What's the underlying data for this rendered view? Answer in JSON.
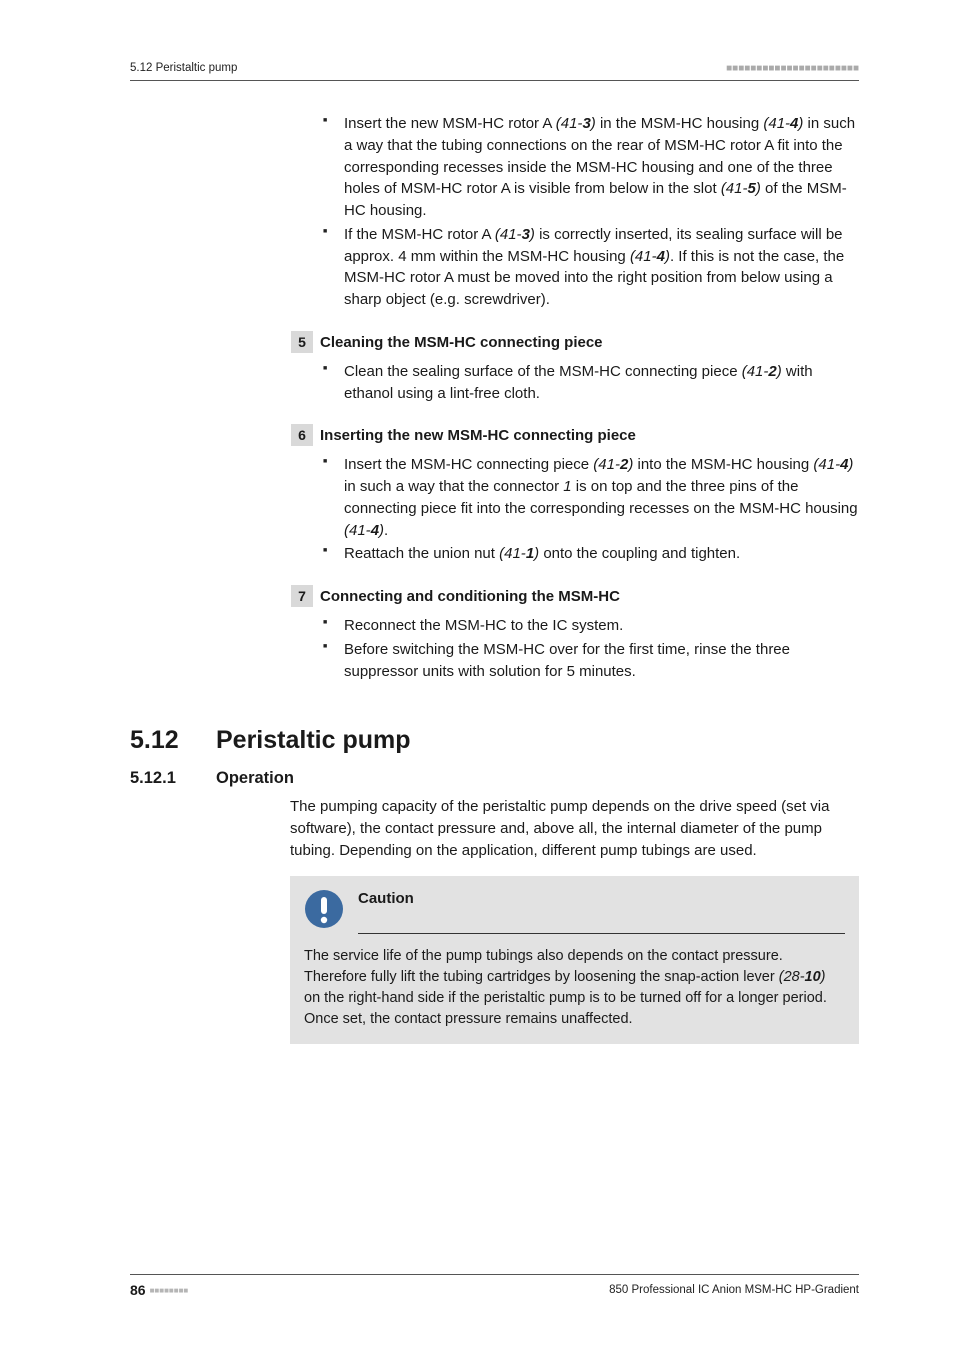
{
  "header": {
    "left": "5.12 Peristaltic pump",
    "dots": "■■■■■■■■■■■■■■■■■■■■■■"
  },
  "pretext_bullets": [
    {
      "runs": [
        {
          "t": "Insert the new MSM-HC rotor A "
        },
        {
          "t": "(41-",
          "cls": "italic"
        },
        {
          "t": "3",
          "cls": "bolditalic"
        },
        {
          "t": ")",
          "cls": "italic"
        },
        {
          "t": " in the MSM-HC housing "
        },
        {
          "t": "(41-",
          "cls": "italic"
        },
        {
          "t": "4",
          "cls": "bolditalic"
        },
        {
          "t": ")",
          "cls": "italic"
        },
        {
          "t": " in such a way that the tubing connections on the rear of MSM-HC rotor A fit into the corresponding recesses inside the MSM-HC housing and one of the three holes of MSM-HC rotor A is visible from below in the slot "
        },
        {
          "t": "(41-",
          "cls": "italic"
        },
        {
          "t": "5",
          "cls": "bolditalic"
        },
        {
          "t": ")",
          "cls": "italic"
        },
        {
          "t": " of the MSM-HC housing."
        }
      ]
    },
    {
      "runs": [
        {
          "t": "If the MSM-HC rotor A "
        },
        {
          "t": "(41-",
          "cls": "italic"
        },
        {
          "t": "3",
          "cls": "bolditalic"
        },
        {
          "t": ")",
          "cls": "italic"
        },
        {
          "t": " is correctly inserted, its sealing surface will be approx. 4 mm within the MSM-HC housing "
        },
        {
          "t": "(41-",
          "cls": "italic"
        },
        {
          "t": "4",
          "cls": "bolditalic"
        },
        {
          "t": ")",
          "cls": "italic"
        },
        {
          "t": ". If this is not the case, the MSM-HC rotor A must be moved into the right position from below using a sharp object (e.g. screwdriver)."
        }
      ]
    }
  ],
  "steps": [
    {
      "num": "5",
      "title": "Cleaning the MSM-HC connecting piece",
      "bullets": [
        {
          "runs": [
            {
              "t": "Clean the sealing surface of the MSM-HC connecting piece "
            },
            {
              "t": "(41-",
              "cls": "italic"
            },
            {
              "t": "2",
              "cls": "bolditalic"
            },
            {
              "t": ")",
              "cls": "italic"
            },
            {
              "t": " with ethanol using a lint-free cloth."
            }
          ]
        }
      ]
    },
    {
      "num": "6",
      "title": "Inserting the new MSM-HC connecting piece",
      "bullets": [
        {
          "runs": [
            {
              "t": "Insert the MSM-HC connecting piece "
            },
            {
              "t": "(41-",
              "cls": "italic"
            },
            {
              "t": "2",
              "cls": "bolditalic"
            },
            {
              "t": ")",
              "cls": "italic"
            },
            {
              "t": " into the MSM-HC housing "
            },
            {
              "t": "(41-",
              "cls": "italic"
            },
            {
              "t": "4",
              "cls": "bolditalic"
            },
            {
              "t": ")",
              "cls": "italic"
            },
            {
              "t": " in such a way that the connector "
            },
            {
              "t": "1",
              "cls": "italic"
            },
            {
              "t": " is on top and the three pins of the connecting piece fit into the corresponding recesses on the MSM-HC housing "
            },
            {
              "t": "(41-",
              "cls": "italic"
            },
            {
              "t": "4",
              "cls": "bolditalic"
            },
            {
              "t": ")",
              "cls": "italic"
            },
            {
              "t": "."
            }
          ]
        },
        {
          "runs": [
            {
              "t": "Reattach the union nut "
            },
            {
              "t": "(41-",
              "cls": "italic"
            },
            {
              "t": "1",
              "cls": "bolditalic"
            },
            {
              "t": ")",
              "cls": "italic"
            },
            {
              "t": " onto the coupling and tighten."
            }
          ]
        }
      ]
    },
    {
      "num": "7",
      "title": "Connecting and conditioning the MSM-HC",
      "bullets": [
        {
          "runs": [
            {
              "t": "Reconnect the MSM-HC to the IC system."
            }
          ]
        },
        {
          "runs": [
            {
              "t": "Before switching the MSM-HC over for the first time, rinse the three suppressor units with solution for 5 minutes."
            }
          ]
        }
      ]
    }
  ],
  "section": {
    "num": "5.12",
    "title": "Peristaltic pump"
  },
  "subsection": {
    "num": "5.12.1",
    "title": "Operation"
  },
  "operation_para": "The pumping capacity of the peristaltic pump depends on the drive speed (set via software), the contact pressure and, above all, the internal diameter of the pump tubing. Depending on the application, different pump tubings are used.",
  "caution": {
    "label": "Caution",
    "runs": [
      {
        "t": "The service life of the pump tubings also depends on the contact pressure. Therefore fully lift the tubing cartridges by loosening the snap-action lever "
      },
      {
        "t": "(28-",
        "cls": "italic"
      },
      {
        "t": "10",
        "cls": "bolditalic"
      },
      {
        "t": ")",
        "cls": "italic"
      },
      {
        "t": " on the right-hand side if the peristaltic pump is to be turned off for a longer period. Once set, the contact pressure remains unaffected."
      }
    ]
  },
  "footer": {
    "page": "86",
    "dots": "■■■■■■■■",
    "right": "850 Professional IC Anion MSM-HC HP-Gradient"
  },
  "colors": {
    "icon_fill": "#3b6aa0",
    "icon_fg": "#ffffff"
  }
}
